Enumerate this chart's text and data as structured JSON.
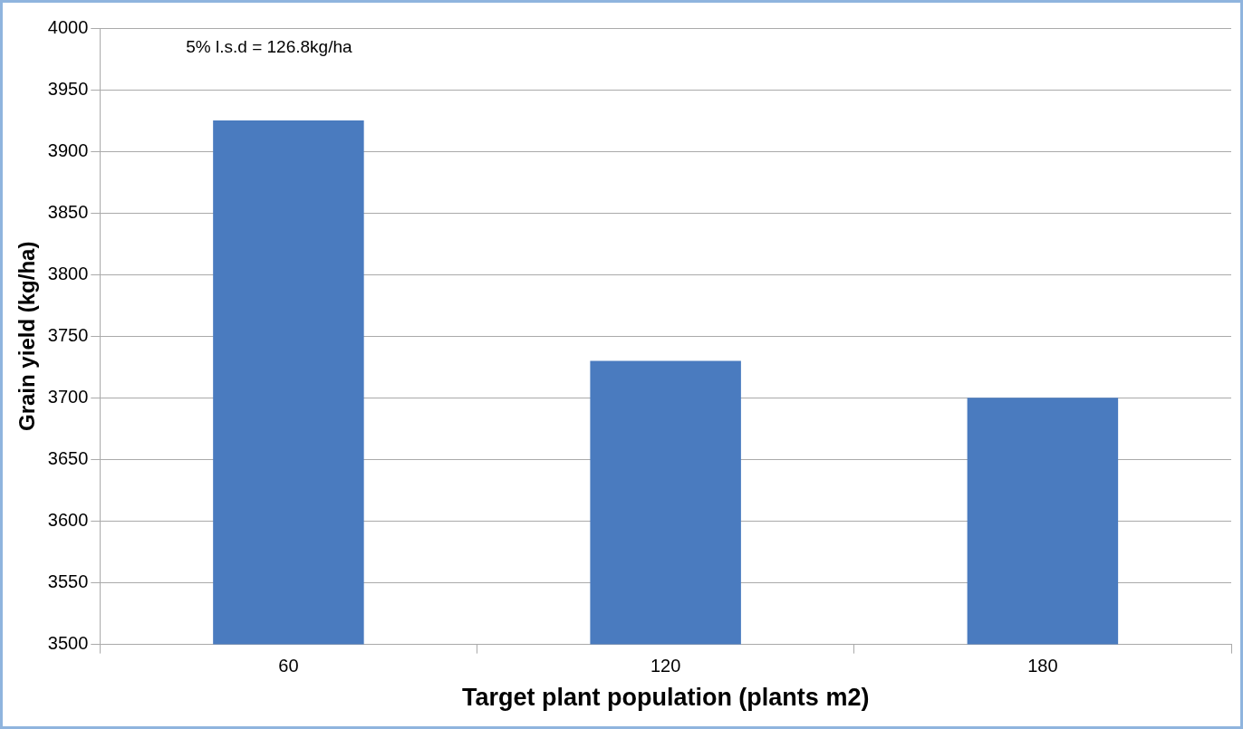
{
  "chart_data": {
    "type": "bar",
    "xlabel": "Target plant population (plants m2)",
    "ylabel": "Grain yield (kg/ha)",
    "categories": [
      "60",
      "120",
      "180"
    ],
    "values": [
      3925,
      3730,
      3700
    ],
    "color": "#4a7bbf",
    "ylim": [
      3500,
      4000
    ],
    "yticks": [
      3500,
      3550,
      3600,
      3650,
      3700,
      3750,
      3800,
      3850,
      3900,
      3950,
      4000
    ],
    "grid": "y",
    "annotations": [
      "5% l.s.d = 126.8kg/ha"
    ]
  }
}
